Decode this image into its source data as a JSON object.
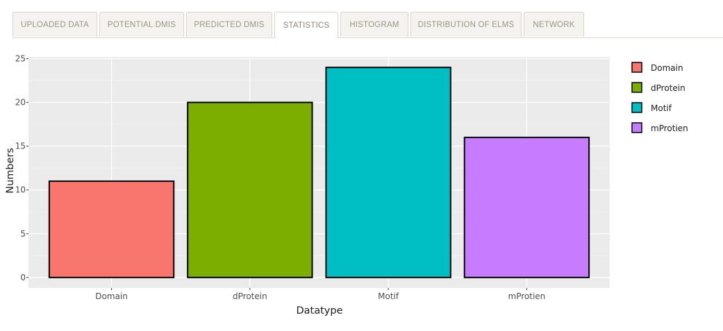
{
  "tabs": [
    {
      "label": "UPLOADED DATA",
      "active": false
    },
    {
      "label": "POTENTIAL DMIS",
      "active": false
    },
    {
      "label": "PREDICTED DMIS",
      "active": false
    },
    {
      "label": "STATISTICS",
      "active": true
    },
    {
      "label": "HISTOGRAM",
      "active": false
    },
    {
      "label": "DISTRIBUTION OF ELMS",
      "active": false
    },
    {
      "label": "NETWORK",
      "active": false
    }
  ],
  "chart_data": {
    "type": "bar",
    "categories": [
      "Domain",
      "dProtein",
      "Motif",
      "mProtien"
    ],
    "values": [
      11,
      20,
      24,
      16
    ],
    "colors": [
      "#F8766D",
      "#7CAE00",
      "#00BFC4",
      "#C77CFF"
    ],
    "title": "",
    "xlabel": "Datatype",
    "ylabel": "Numbers",
    "ylim": [
      -1.2,
      25.2
    ],
    "yticks": [
      0,
      5,
      10,
      15,
      20,
      25
    ],
    "grid": true,
    "legend": {
      "position": "right",
      "entries": [
        "Domain",
        "dProtein",
        "Motif",
        "mProtien"
      ]
    }
  }
}
